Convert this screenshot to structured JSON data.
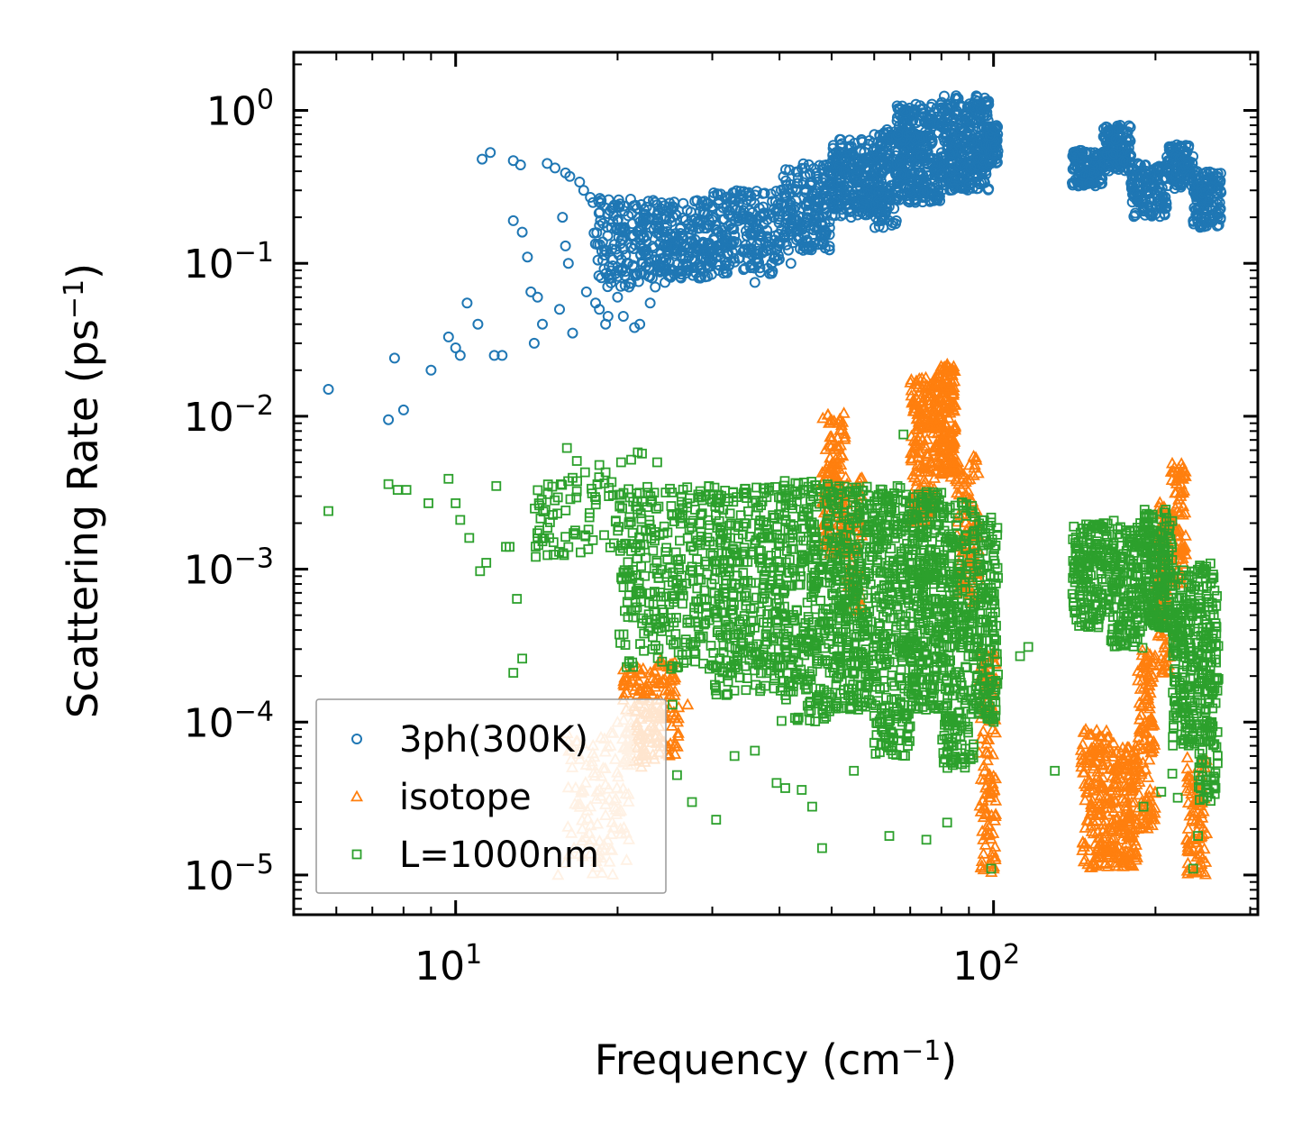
{
  "chart_data": {
    "type": "scatter",
    "title": "",
    "xlabel": "Frequency (cm",
    "xlabel_sup": "−1",
    "xlabel_end": ")",
    "ylabel": "Scattering Rate (ps",
    "ylabel_sup": "−1",
    "ylabel_end": ")",
    "xscale": "log",
    "yscale": "log",
    "xlim": [
      5,
      310
    ],
    "ylim": [
      5.5e-06,
      2.4
    ],
    "x_ticks": [
      {
        "value": 10,
        "base": "10",
        "exp": "1"
      },
      {
        "value": 100,
        "base": "10",
        "exp": "2"
      }
    ],
    "y_ticks": [
      {
        "value": 1,
        "base": "10",
        "exp": "0"
      },
      {
        "value": 0.1,
        "base": "10",
        "exp": "−1"
      },
      {
        "value": 0.01,
        "base": "10",
        "exp": "−2"
      },
      {
        "value": 0.001,
        "base": "10",
        "exp": "−3"
      },
      {
        "value": 0.0001,
        "base": "10",
        "exp": "−4"
      },
      {
        "value": 1e-05,
        "base": "10",
        "exp": "−5"
      }
    ],
    "legend_position": "lower-left",
    "series": [
      {
        "name": "3ph(300K)",
        "marker": "circle",
        "color": "#1f77b4",
        "points": [
          [
            5.8,
            0.015
          ],
          [
            7.5,
            0.0095
          ],
          [
            7.7,
            0.024
          ],
          [
            8.0,
            0.011
          ],
          [
            9.0,
            0.02
          ],
          [
            9.7,
            0.033
          ],
          [
            10.0,
            0.028
          ],
          [
            10.2,
            0.025
          ],
          [
            10.5,
            0.055
          ],
          [
            11.2,
            0.48
          ],
          [
            11.6,
            0.53
          ],
          [
            11.8,
            0.025
          ],
          [
            12.2,
            0.025
          ],
          [
            12.8,
            0.47
          ],
          [
            13.2,
            0.44
          ],
          [
            12.8,
            0.19
          ],
          [
            13.3,
            0.16
          ],
          [
            13.6,
            0.11
          ],
          [
            13.8,
            0.065
          ],
          [
            14.0,
            0.03
          ],
          [
            14.5,
            0.04
          ],
          [
            14.8,
            0.45
          ],
          [
            15.3,
            0.42
          ],
          [
            15.6,
            0.05
          ],
          [
            16.0,
            0.39
          ],
          [
            16.3,
            0.37
          ],
          [
            15.8,
            0.2
          ],
          [
            16.0,
            0.13
          ],
          [
            16.2,
            0.1
          ],
          [
            16.5,
            0.035
          ],
          [
            17.0,
            0.34
          ],
          [
            17.3,
            0.3
          ],
          [
            17.8,
            0.27
          ],
          [
            18.0,
            0.25
          ],
          [
            17.5,
            0.065
          ],
          [
            18.2,
            0.055
          ],
          [
            18.5,
            0.05
          ],
          [
            19.0,
            0.04
          ],
          [
            19.5,
            0.08
          ],
          [
            20.0,
            0.06
          ],
          [
            20.5,
            0.045
          ],
          [
            21.0,
            0.07
          ],
          [
            21.5,
            0.038
          ],
          [
            22.0,
            0.04
          ],
          [
            23.0,
            0.055
          ],
          [
            22.5,
            0.085
          ],
          [
            24.0,
            0.09
          ],
          [
            24.5,
            0.075
          ],
          [
            25.5,
            0.085
          ],
          [
            27.0,
            0.095
          ],
          [
            28.5,
            0.08
          ],
          [
            36.0,
            0.075
          ],
          [
            42.0,
            0.1
          ],
          [
            11.0,
            0.04
          ],
          [
            14.2,
            0.06
          ],
          [
            19.2,
            0.045
          ],
          [
            20.8,
            0.1
          ],
          [
            23.5,
            0.07
          ]
        ],
        "bands": [
          {
            "x": [
              18.0,
              22.0
            ],
            "y": [
              0.07,
              0.27
            ],
            "n": 110
          },
          {
            "x": [
              22.0,
              30.0
            ],
            "y": [
              0.08,
              0.26
            ],
            "n": 260
          },
          {
            "x": [
              30.0,
              40.0
            ],
            "y": [
              0.085,
              0.3
            ],
            "n": 220
          },
          {
            "x": [
              40.0,
              50.0
            ],
            "y": [
              0.12,
              0.45
            ],
            "n": 200
          },
          {
            "x": [
              50.0,
              60.0
            ],
            "y": [
              0.2,
              0.65
            ],
            "n": 220
          },
          {
            "x": [
              60.0,
              66.0
            ],
            "y": [
              0.17,
              0.75
            ],
            "n": 140
          },
          {
            "x": [
              66.0,
              80.0
            ],
            "y": [
              0.25,
              1.1
            ],
            "n": 330
          },
          {
            "x": [
              80.0,
              98.0
            ],
            "y": [
              0.3,
              1.25
            ],
            "n": 340
          },
          {
            "x": [
              98.0,
              102.0
            ],
            "y": [
              0.45,
              0.8
            ],
            "n": 60
          },
          {
            "x": [
              140.0,
              160.0
            ],
            "y": [
              0.32,
              0.55
            ],
            "n": 120
          },
          {
            "x": [
              160.0,
              180.0
            ],
            "y": [
              0.4,
              0.8
            ],
            "n": 130
          },
          {
            "x": [
              180.0,
              210.0
            ],
            "y": [
              0.2,
              0.45
            ],
            "n": 140
          },
          {
            "x": [
              210.0,
              235.0
            ],
            "y": [
              0.3,
              0.6
            ],
            "n": 110
          },
          {
            "x": [
              235.0,
              265.0
            ],
            "y": [
              0.17,
              0.4
            ],
            "n": 140
          }
        ]
      },
      {
        "name": "isotope",
        "marker": "triangle",
        "color": "#ff7f0e",
        "light_color": "#ffbb78",
        "points": [
          [
            15.5,
            1e-05
          ],
          [
            16.0,
            1.2e-05
          ],
          [
            16.6,
            1.5e-05
          ],
          [
            17.2,
            2e-05
          ],
          [
            17.8,
            2.8e-05
          ],
          [
            18.3,
            3.5e-05
          ],
          [
            18.8,
            5e-05
          ],
          [
            19.4,
            7e-05
          ],
          [
            20.0,
            0.0001
          ],
          [
            20.5,
            0.00014
          ],
          [
            21.0,
            0.00018
          ],
          [
            21.5,
            0.0002
          ],
          [
            22.0,
            0.00022
          ],
          [
            22.5,
            0.00016
          ],
          [
            23.5,
            0.00017
          ],
          [
            24.0,
            0.00025
          ],
          [
            24.5,
            0.00019
          ],
          [
            25.5,
            0.00015
          ],
          [
            27.0,
            0.00013
          ],
          [
            99.0,
            1.2e-05
          ],
          [
            100.0,
            1.1e-05
          ]
        ],
        "bands": [
          {
            "x": [
              16.0,
              21.0
            ],
            "y": [
              1e-05,
              9e-05
            ],
            "n": 110
          },
          {
            "x": [
              20.5,
              23.5
            ],
            "y": [
              5e-05,
              0.00023
            ],
            "n": 110
          },
          {
            "x": [
              23.5,
              26.0
            ],
            "y": [
              6e-05,
              0.00026
            ],
            "n": 70
          },
          {
            "x": [
              48.0,
              53.0
            ],
            "y": [
              0.0012,
              0.011
            ],
            "n": 140
          },
          {
            "x": [
              53.0,
              57.0
            ],
            "y": [
              0.0005,
              0.004
            ],
            "n": 60
          },
          {
            "x": [
              70.0,
              78.0
            ],
            "y": [
              0.002,
              0.018
            ],
            "n": 190
          },
          {
            "x": [
              78.0,
              85.0
            ],
            "y": [
              0.004,
              0.022
            ],
            "n": 190
          },
          {
            "x": [
              85.0,
              94.0
            ],
            "y": [
              0.0006,
              0.006
            ],
            "n": 110
          },
          {
            "x": [
              94.0,
              101.0
            ],
            "y": [
              1e-05,
              0.0003
            ],
            "n": 120
          },
          {
            "x": [
              145.0,
              168.0
            ],
            "y": [
              1.1e-05,
              9e-05
            ],
            "n": 190
          },
          {
            "x": [
              168.0,
              185.0
            ],
            "y": [
              1.1e-05,
              7e-05
            ],
            "n": 150
          },
          {
            "x": [
              185.0,
              200.0
            ],
            "y": [
              2e-05,
              0.0003
            ],
            "n": 130
          },
          {
            "x": [
              200.0,
              213.0
            ],
            "y": [
              0.0002,
              0.0028
            ],
            "n": 90
          },
          {
            "x": [
              213.0,
              228.0
            ],
            "y": [
              0.0008,
              0.005
            ],
            "n": 90
          },
          {
            "x": [
              228.0,
              250.0
            ],
            "y": [
              1e-05,
              6e-05
            ],
            "n": 90
          }
        ]
      },
      {
        "name": "L=1000nm",
        "marker": "square",
        "color": "#2ca02c",
        "points": [
          [
            5.8,
            0.0024
          ],
          [
            7.5,
            0.0036
          ],
          [
            7.8,
            0.0033
          ],
          [
            8.1,
            0.0033
          ],
          [
            8.9,
            0.0027
          ],
          [
            9.7,
            0.0039
          ],
          [
            10.0,
            0.0027
          ],
          [
            10.2,
            0.0021
          ],
          [
            10.6,
            0.0016
          ],
          [
            11.1,
            0.00097
          ],
          [
            11.4,
            0.0011
          ],
          [
            11.9,
            0.0035
          ],
          [
            12.4,
            0.0014
          ],
          [
            12.6,
            0.0014
          ],
          [
            13.0,
            0.00064
          ],
          [
            13.3,
            0.00026
          ],
          [
            12.8,
            0.00021
          ],
          [
            14.6,
            0.0016
          ],
          [
            15.2,
            0.0015
          ],
          [
            16.1,
            0.0062
          ],
          [
            16.8,
            0.0051
          ],
          [
            17.4,
            0.0043
          ],
          [
            18.5,
            0.0048
          ],
          [
            19.0,
            0.0043
          ],
          [
            20.3,
            0.005
          ],
          [
            21.2,
            0.0052
          ],
          [
            21.8,
            0.0058
          ],
          [
            22.2,
            0.0057
          ],
          [
            23.7,
            0.005
          ],
          [
            25.3,
            0.00013
          ],
          [
            25.8,
            4.5e-05
          ],
          [
            27.5,
            3e-05
          ],
          [
            30.5,
            2.3e-05
          ],
          [
            33.0,
            6e-05
          ],
          [
            36.0,
            6.5e-05
          ],
          [
            39.5,
            4e-05
          ],
          [
            41.0,
            3.7e-05
          ],
          [
            44.0,
            3.6e-05
          ],
          [
            46.0,
            2.8e-05
          ],
          [
            48.0,
            1.5e-05
          ],
          [
            55.0,
            4.8e-05
          ],
          [
            64.0,
            1.8e-05
          ],
          [
            68.0,
            0.0076
          ],
          [
            75.0,
            1.7e-05
          ],
          [
            82.0,
            2.2e-05
          ],
          [
            99.0,
            1.1e-05
          ],
          [
            112.0,
            0.00027
          ],
          [
            116.0,
            0.00031
          ],
          [
            130.0,
            4.8e-05
          ],
          [
            190.0,
            2.8e-05
          ],
          [
            205.0,
            3.5e-05
          ],
          [
            215.0,
            4.6e-05
          ],
          [
            220.0,
            3.2e-05
          ],
          [
            235.0,
            1.1e-05
          ],
          [
            240.0,
            1.8e-05
          ]
        ],
        "bands": [
          {
            "x": [
              14.0,
              20.0
            ],
            "y": [
              0.0012,
              0.004
            ],
            "n": 70
          },
          {
            "x": [
              20.0,
              30.0
            ],
            "y": [
              0.00022,
              0.0035
            ],
            "n": 300
          },
          {
            "x": [
              30.0,
              40.0
            ],
            "y": [
              0.00015,
              0.0035
            ],
            "n": 330
          },
          {
            "x": [
              40.0,
              50.0
            ],
            "y": [
              0.0001,
              0.0038
            ],
            "n": 320
          },
          {
            "x": [
              50.0,
              60.0
            ],
            "y": [
              0.00012,
              0.0035
            ],
            "n": 320
          },
          {
            "x": [
              60.0,
              70.0
            ],
            "y": [
              6e-05,
              0.0035
            ],
            "n": 300
          },
          {
            "x": [
              70.0,
              80.0
            ],
            "y": [
              0.00012,
              0.0032
            ],
            "n": 280
          },
          {
            "x": [
              80.0,
              92.0
            ],
            "y": [
              5e-05,
              0.0028
            ],
            "n": 280
          },
          {
            "x": [
              92.0,
              102.0
            ],
            "y": [
              0.0001,
              0.0022
            ],
            "n": 170
          },
          {
            "x": [
              140.0,
              165.0
            ],
            "y": [
              0.0004,
              0.002
            ],
            "n": 170
          },
          {
            "x": [
              165.0,
              190.0
            ],
            "y": [
              0.0003,
              0.0021
            ],
            "n": 170
          },
          {
            "x": [
              190.0,
              215.0
            ],
            "y": [
              0.0004,
              0.0025
            ],
            "n": 190
          },
          {
            "x": [
              215.0,
              240.0
            ],
            "y": [
              7e-05,
              0.001
            ],
            "n": 180
          },
          {
            "x": [
              240.0,
              262.0
            ],
            "y": [
              3e-05,
              0.0011
            ],
            "n": 180
          }
        ]
      }
    ]
  }
}
